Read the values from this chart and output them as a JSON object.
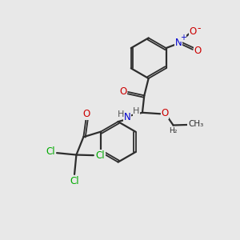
{
  "bg_color": "#e8e8e8",
  "bond_color": "#2d2d2d",
  "atom_colors": {
    "O": "#cc0000",
    "N": "#0000cc",
    "Cl": "#00aa00",
    "H": "#555555",
    "C": "#2d2d2d"
  },
  "figsize": [
    3.0,
    3.0
  ],
  "dpi": 100
}
